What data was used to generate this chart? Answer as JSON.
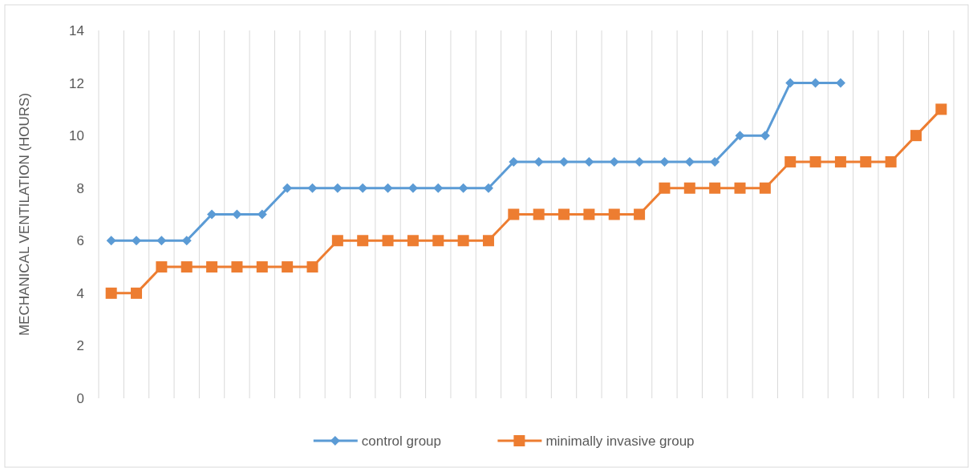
{
  "chart_data": {
    "type": "line",
    "ylabel": "MECHANICAL VENTILATION (HOURS)",
    "categories": [
      null,
      null,
      null,
      null,
      null,
      null,
      null,
      null,
      null,
      null,
      null,
      null,
      null,
      null,
      null,
      null,
      null,
      null,
      null,
      null,
      null,
      null,
      null,
      null,
      null,
      null,
      null,
      null,
      null,
      null,
      null,
      null,
      null,
      null
    ],
    "series": [
      {
        "name": "control group",
        "color": "#5b9bd5",
        "marker": "diamond",
        "values": [
          6,
          6,
          6,
          6,
          7,
          7,
          7,
          8,
          8,
          8,
          8,
          8,
          8,
          8,
          8,
          8,
          9,
          9,
          9,
          9,
          9,
          9,
          9,
          9,
          9,
          10,
          10,
          12,
          12,
          12,
          null,
          null,
          null,
          null
        ]
      },
      {
        "name": "minimally invasive group",
        "color": "#ed7d31",
        "marker": "square",
        "values": [
          4,
          4,
          5,
          5,
          5,
          5,
          5,
          5,
          5,
          6,
          6,
          6,
          6,
          6,
          6,
          6,
          7,
          7,
          7,
          7,
          7,
          7,
          8,
          8,
          8,
          8,
          8,
          9,
          9,
          9,
          9,
          9,
          10,
          11
        ]
      }
    ],
    "ylim": [
      0,
      14
    ],
    "yticks": [
      0,
      2,
      4,
      6,
      8,
      10,
      12,
      14
    ],
    "grid": "x",
    "legend": "bottom",
    "line_style": "solid"
  }
}
